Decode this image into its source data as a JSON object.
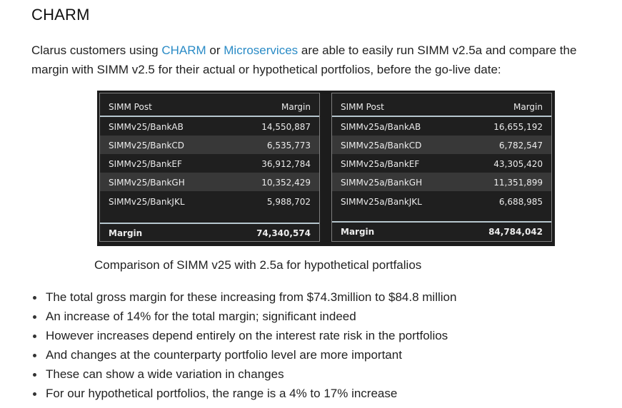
{
  "heading": "CHARM",
  "intro": {
    "prefix": "Clarus customers using ",
    "link_charm": "CHARM",
    "middle": " or ",
    "link_microservices": "Microservices",
    "suffix": " are able to easily run SIMM v2.5a and compare the margin with SIMM v2.5 for their actual or hypothetical portfolios, before the go-live date:"
  },
  "tables": [
    {
      "header": {
        "col1": "SIMM Post",
        "col2": "Margin"
      },
      "rows": [
        {
          "name": "SIMMv25/BankAB",
          "margin": "14,550,887"
        },
        {
          "name": "SIMMv25/BankCD",
          "margin": "6,535,773"
        },
        {
          "name": "SIMMv25/BankEF",
          "margin": "36,912,784"
        },
        {
          "name": "SIMMv25/BankGH",
          "margin": "10,352,429"
        },
        {
          "name": "SIMMv25/BankJKL",
          "margin": "5,988,702"
        }
      ],
      "total": {
        "label": "Margin",
        "value": "74,340,574"
      }
    },
    {
      "header": {
        "col1": "SIMM Post",
        "col2": "Margin"
      },
      "rows": [
        {
          "name": "SIMMv25a/BankAB",
          "margin": "16,655,192"
        },
        {
          "name": "SIMMv25a/BankCD",
          "margin": "6,782,547"
        },
        {
          "name": "SIMMv25a/BankEF",
          "margin": "43,305,420"
        },
        {
          "name": "SIMMv25a/BankGH",
          "margin": "11,351,899"
        },
        {
          "name": "SIMMv25a/BankJKL",
          "margin": "6,688,985"
        }
      ],
      "total": {
        "label": "Margin",
        "value": "84,784,042"
      }
    }
  ],
  "caption": "Comparison of SIMM v25 with 2.5a for hypothetical portfalios",
  "bullets": [
    "The total gross margin for these increasing from $74.3million to $84.8 million",
    "An increase of 14% for the total margin; significant indeed",
    "However increases depend entirely on the interest rate risk in the portfolios",
    "And changes at the counterparty portfolio level are more important",
    "These can show a wide variation in changes",
    "For our hypothetical portfolios, the range is a 4% to 17% increase"
  ],
  "colors": {
    "link": "#2a8bc6",
    "table_bg": "#1c1c1c",
    "row_alt": "#383838",
    "rule": "#b7c7cf"
  }
}
